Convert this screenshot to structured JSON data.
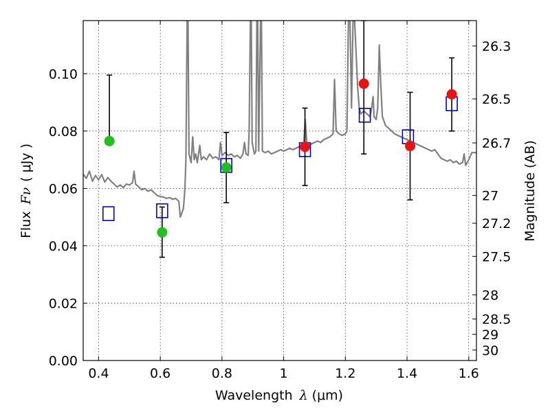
{
  "chart_data": {
    "type": "scatter",
    "xlabel_prefix": "Wavelength",
    "xlabel_var": "λ",
    "xlabel_unit": "(μm)",
    "ylabel_prefix": "Flux",
    "ylabel_var": "Fν",
    "ylabel_unit": "( μJy )",
    "y2label": "Magnitude (AB)",
    "xlim": [
      0.35,
      1.625
    ],
    "ylim": [
      0.0,
      0.1185
    ],
    "grid": true,
    "x_ticks": [
      {
        "value": 0.4,
        "label": "0.4"
      },
      {
        "value": 0.6,
        "label": "0.6"
      },
      {
        "value": 0.8,
        "label": "0.8"
      },
      {
        "value": 1.0,
        "label": "1"
      },
      {
        "value": 1.2,
        "label": "1.2"
      },
      {
        "value": 1.4,
        "label": "1.4"
      },
      {
        "value": 1.6,
        "label": "1.6"
      }
    ],
    "y_ticks": [
      {
        "value": 0.0,
        "label": "0.00"
      },
      {
        "value": 0.02,
        "label": "0.02"
      },
      {
        "value": 0.04,
        "label": "0.04"
      },
      {
        "value": 0.06,
        "label": "0.06"
      },
      {
        "value": 0.08,
        "label": "0.08"
      },
      {
        "value": 0.1,
        "label": "0.10"
      }
    ],
    "mag_ticks": [
      {
        "mag": 26.3,
        "label": "26.3"
      },
      {
        "mag": 26.5,
        "label": "26.5"
      },
      {
        "mag": 26.7,
        "label": "26.7"
      },
      {
        "mag": 27.0,
        "label": "27"
      },
      {
        "mag": 27.2,
        "label": "27.2"
      },
      {
        "mag": 27.5,
        "label": "27.5"
      },
      {
        "mag": 28.0,
        "label": "28"
      },
      {
        "mag": 28.5,
        "label": "28.5"
      },
      {
        "mag": 29.0,
        "label": "29"
      },
      {
        "mag": 30.0,
        "label": "30"
      }
    ],
    "observed": [
      {
        "x": 0.435,
        "y": 0.0765,
        "yerr_low": 0.0765,
        "yerr_high": 0.0995,
        "color": "#1fc01f"
      },
      {
        "x": 0.606,
        "y": 0.0447,
        "yerr_low": 0.036,
        "yerr_high": 0.0535,
        "color": "#1fc01f"
      },
      {
        "x": 0.814,
        "y": 0.0673,
        "yerr_low": 0.055,
        "yerr_high": 0.0795,
        "color": "#1fc01f"
      },
      {
        "x": 1.069,
        "y": 0.0745,
        "yerr_low": 0.061,
        "yerr_high": 0.088,
        "color": "#ee1111"
      },
      {
        "x": 1.26,
        "y": 0.0965,
        "yerr_low": 0.072,
        "yerr_high": 0.1185,
        "color": "#ee1111"
      },
      {
        "x": 1.41,
        "y": 0.0748,
        "yerr_low": 0.056,
        "yerr_high": 0.0935,
        "color": "#ee1111"
      },
      {
        "x": 1.545,
        "y": 0.0928,
        "yerr_low": 0.08,
        "yerr_high": 0.1055,
        "color": "#ee1111"
      }
    ],
    "model_boxes": [
      {
        "x": 0.432,
        "y": 0.0512
      },
      {
        "x": 0.606,
        "y": 0.0522
      },
      {
        "x": 0.814,
        "y": 0.068
      },
      {
        "x": 1.069,
        "y": 0.0735
      },
      {
        "x": 1.263,
        "y": 0.0855
      },
      {
        "x": 1.403,
        "y": 0.078
      },
      {
        "x": 1.545,
        "y": 0.0895
      }
    ],
    "model_box_color": "#0000cc",
    "spectrum_color": "#808080",
    "spectrum": [
      [
        0.35,
        0.065
      ],
      [
        0.36,
        0.0635
      ],
      [
        0.37,
        0.066
      ],
      [
        0.38,
        0.0625
      ],
      [
        0.39,
        0.0645
      ],
      [
        0.4,
        0.063
      ],
      [
        0.41,
        0.0648
      ],
      [
        0.42,
        0.0622
      ],
      [
        0.43,
        0.0638
      ],
      [
        0.44,
        0.0625
      ],
      [
        0.45,
        0.0615
      ],
      [
        0.46,
        0.0605
      ],
      [
        0.47,
        0.0612
      ],
      [
        0.48,
        0.0603
      ],
      [
        0.49,
        0.0615
      ],
      [
        0.5,
        0.0612
      ],
      [
        0.51,
        0.062
      ],
      [
        0.515,
        0.066
      ],
      [
        0.52,
        0.0615
      ],
      [
        0.53,
        0.0605
      ],
      [
        0.54,
        0.0595
      ],
      [
        0.55,
        0.06
      ],
      [
        0.56,
        0.059
      ],
      [
        0.57,
        0.0595
      ],
      [
        0.58,
        0.0585
      ],
      [
        0.59,
        0.0575
      ],
      [
        0.6,
        0.0572
      ],
      [
        0.61,
        0.057
      ],
      [
        0.62,
        0.0565
      ],
      [
        0.63,
        0.0568
      ],
      [
        0.64,
        0.0562
      ],
      [
        0.65,
        0.0565
      ],
      [
        0.66,
        0.0555
      ],
      [
        0.665,
        0.05
      ],
      [
        0.675,
        0.053
      ],
      [
        0.68,
        0.06
      ],
      [
        0.683,
        0.07
      ],
      [
        0.687,
        0.1185
      ],
      [
        0.69,
        0.1185
      ],
      [
        0.693,
        0.072
      ],
      [
        0.7,
        0.069
      ],
      [
        0.705,
        0.078
      ],
      [
        0.71,
        0.07
      ],
      [
        0.715,
        0.072
      ],
      [
        0.72,
        0.069
      ],
      [
        0.728,
        0.075
      ],
      [
        0.733,
        0.07
      ],
      [
        0.74,
        0.071
      ],
      [
        0.75,
        0.07
      ],
      [
        0.76,
        0.072
      ],
      [
        0.77,
        0.0705
      ],
      [
        0.78,
        0.071
      ],
      [
        0.79,
        0.07
      ],
      [
        0.795,
        0.076
      ],
      [
        0.8,
        0.0715
      ],
      [
        0.81,
        0.0725
      ],
      [
        0.82,
        0.0715
      ],
      [
        0.83,
        0.072
      ],
      [
        0.84,
        0.071
      ],
      [
        0.85,
        0.0715
      ],
      [
        0.86,
        0.0705
      ],
      [
        0.868,
        0.072
      ],
      [
        0.873,
        0.076
      ],
      [
        0.878,
        0.072
      ],
      [
        0.885,
        0.0715
      ],
      [
        0.888,
        0.08
      ],
      [
        0.892,
        0.1185
      ],
      [
        0.895,
        0.1185
      ],
      [
        0.898,
        0.076
      ],
      [
        0.905,
        0.072
      ],
      [
        0.91,
        0.073
      ],
      [
        0.913,
        0.1185
      ],
      [
        0.916,
        0.1185
      ],
      [
        0.919,
        0.073
      ],
      [
        0.925,
        0.1185
      ],
      [
        0.928,
        0.1185
      ],
      [
        0.931,
        0.073
      ],
      [
        0.94,
        0.0725
      ],
      [
        0.95,
        0.073
      ],
      [
        0.96,
        0.072
      ],
      [
        0.97,
        0.0725
      ],
      [
        0.98,
        0.073
      ],
      [
        0.99,
        0.0735
      ],
      [
        1.0,
        0.073
      ],
      [
        1.01,
        0.0735
      ],
      [
        1.02,
        0.074
      ],
      [
        1.03,
        0.0735
      ],
      [
        1.04,
        0.074
      ],
      [
        1.05,
        0.0745
      ],
      [
        1.06,
        0.075
      ],
      [
        1.065,
        0.076
      ],
      [
        1.07,
        0.084
      ],
      [
        1.075,
        0.076
      ],
      [
        1.08,
        0.075
      ],
      [
        1.09,
        0.0755
      ],
      [
        1.1,
        0.076
      ],
      [
        1.11,
        0.0765
      ],
      [
        1.12,
        0.076
      ],
      [
        1.13,
        0.077
      ],
      [
        1.14,
        0.0775
      ],
      [
        1.15,
        0.078
      ],
      [
        1.16,
        0.079
      ],
      [
        1.165,
        0.098
      ],
      [
        1.17,
        0.08
      ],
      [
        1.18,
        0.079
      ],
      [
        1.19,
        0.0785
      ],
      [
        1.2,
        0.079
      ],
      [
        1.205,
        0.08
      ],
      [
        1.21,
        0.1185
      ],
      [
        1.215,
        0.1185
      ],
      [
        1.22,
        0.088
      ],
      [
        1.225,
        0.1185
      ],
      [
        1.23,
        0.1185
      ],
      [
        1.24,
        0.095
      ],
      [
        1.245,
        0.088
      ],
      [
        1.25,
        0.086
      ],
      [
        1.26,
        0.087
      ],
      [
        1.27,
        0.086
      ],
      [
        1.28,
        0.085
      ],
      [
        1.285,
        0.088
      ],
      [
        1.29,
        0.092
      ],
      [
        1.293,
        0.085
      ],
      [
        1.3,
        0.084
      ],
      [
        1.305,
        0.088
      ],
      [
        1.31,
        0.11
      ],
      [
        1.315,
        0.096
      ],
      [
        1.32,
        0.085
      ],
      [
        1.33,
        0.082
      ],
      [
        1.34,
        0.081
      ],
      [
        1.35,
        0.08
      ],
      [
        1.36,
        0.079
      ],
      [
        1.37,
        0.0785
      ],
      [
        1.38,
        0.078
      ],
      [
        1.39,
        0.0775
      ],
      [
        1.4,
        0.077
      ],
      [
        1.41,
        0.0765
      ],
      [
        1.42,
        0.076
      ],
      [
        1.43,
        0.0755
      ],
      [
        1.44,
        0.075
      ],
      [
        1.45,
        0.0745
      ],
      [
        1.46,
        0.074
      ],
      [
        1.47,
        0.0735
      ],
      [
        1.48,
        0.073
      ],
      [
        1.49,
        0.0735
      ],
      [
        1.5,
        0.072
      ],
      [
        1.51,
        0.0705
      ],
      [
        1.52,
        0.07
      ],
      [
        1.53,
        0.0695
      ],
      [
        1.54,
        0.07
      ],
      [
        1.55,
        0.069
      ],
      [
        1.56,
        0.0695
      ],
      [
        1.57,
        0.0685
      ],
      [
        1.58,
        0.069
      ],
      [
        1.585,
        0.072
      ],
      [
        1.59,
        0.068
      ],
      [
        1.6,
        0.07
      ],
      [
        1.61,
        0.0725
      ],
      [
        1.625,
        0.0725
      ]
    ]
  }
}
